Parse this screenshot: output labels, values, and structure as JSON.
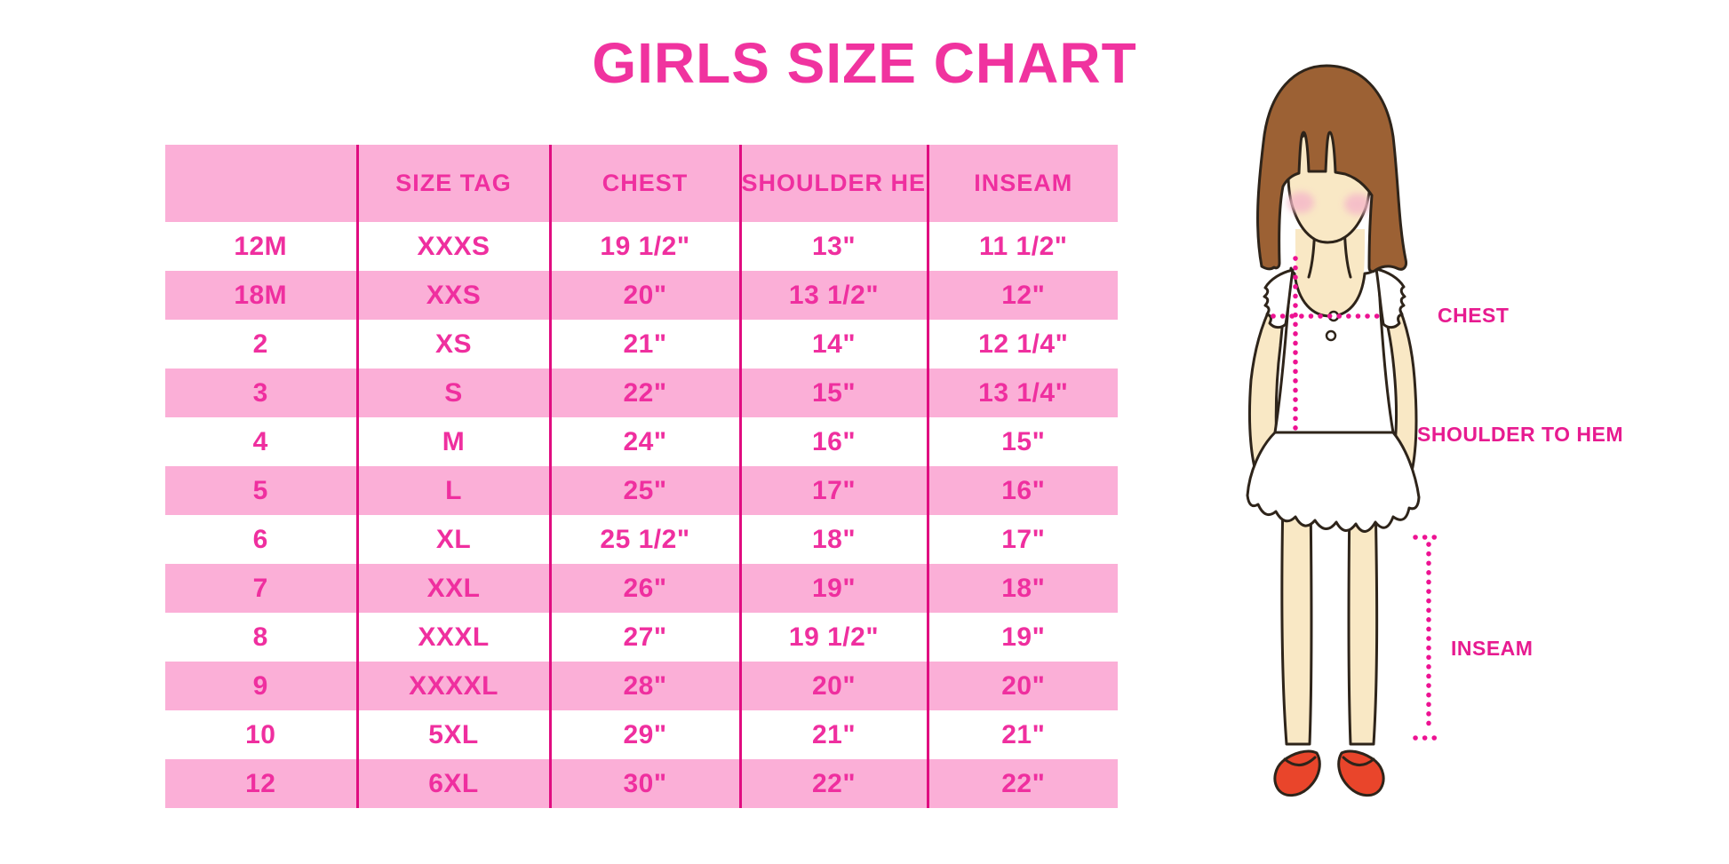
{
  "title": "GIRLS SIZE CHART",
  "chart_data": {
    "type": "table",
    "title": "GIRLS SIZE CHART",
    "columns": [
      "",
      "SIZE TAG",
      "CHEST",
      "SHOULDER HEM",
      "INSEAM"
    ],
    "rows": [
      [
        "12M",
        "XXXS",
        "19 1/2\"",
        "13\"",
        "11 1/2\""
      ],
      [
        "18M",
        "XXS",
        "20\"",
        "13 1/2\"",
        "12\""
      ],
      [
        "2",
        "XS",
        "21\"",
        "14\"",
        "12 1/4\""
      ],
      [
        "3",
        "S",
        "22\"",
        "15\"",
        "13 1/4\""
      ],
      [
        "4",
        "M",
        "24\"",
        "16\"",
        "15\""
      ],
      [
        "5",
        "L",
        "25\"",
        "17\"",
        "16\""
      ],
      [
        "6",
        "XL",
        "25 1/2\"",
        "18\"",
        "17\""
      ],
      [
        "7",
        "XXL",
        "26\"",
        "19\"",
        "18\""
      ],
      [
        "8",
        "XXXL",
        "27\"",
        "19 1/2\"",
        "19\""
      ],
      [
        "9",
        "XXXXL",
        "28\"",
        "20\"",
        "20\""
      ],
      [
        "10",
        "5XL",
        "29\"",
        "21\"",
        "21\""
      ],
      [
        "12",
        "6XL",
        "30\"",
        "22\"",
        "22\""
      ]
    ],
    "layout": {
      "alternating_row_colors": true,
      "column_dividers": true
    }
  },
  "diagram": {
    "labels": {
      "chest": "CHEST",
      "shoulder_to_hem": "SHOULDER TO HEM",
      "inseam": "INSEAM"
    }
  },
  "colors": {
    "row_pink": "#FBAFD7",
    "divider_magenta": "#E00C80",
    "table_text_pink": "#EF2F9F",
    "title_pink": "#F0339F",
    "dotted_line_magenta": "#ED1292",
    "hair_brown": "#9C6134",
    "skin": "#F9E8C5",
    "shoe_red": "#E9452B"
  }
}
